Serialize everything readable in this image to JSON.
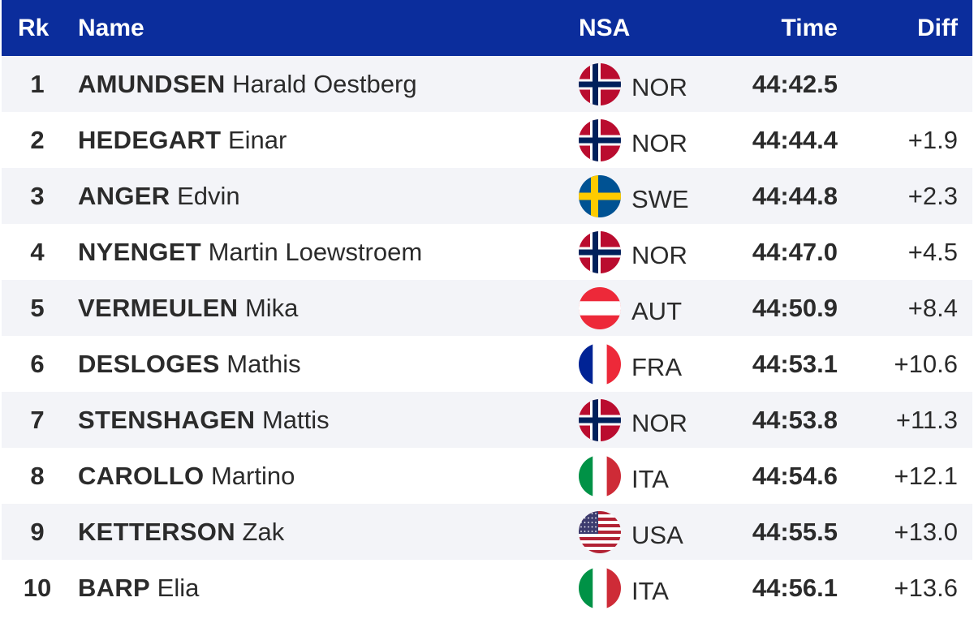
{
  "header": {
    "rk": "Rk",
    "name": "Name",
    "nsa": "NSA",
    "time": "Time",
    "diff": "Diff"
  },
  "colors": {
    "header_bg": "#0b2d9c",
    "row_alt": "#f3f4f8",
    "text": "#2b2b2b"
  },
  "rows": [
    {
      "rank": "1",
      "last": "AMUNDSEN",
      "first": "Harald Oestberg",
      "nsa": "NOR",
      "flag": "norway-flag-icon",
      "time": "44:42.5",
      "diff": ""
    },
    {
      "rank": "2",
      "last": "HEDEGART",
      "first": "Einar",
      "nsa": "NOR",
      "flag": "norway-flag-icon",
      "time": "44:44.4",
      "diff": "+1.9"
    },
    {
      "rank": "3",
      "last": "ANGER",
      "first": "Edvin",
      "nsa": "SWE",
      "flag": "sweden-flag-icon",
      "time": "44:44.8",
      "diff": "+2.3"
    },
    {
      "rank": "4",
      "last": "NYENGET",
      "first": "Martin Loewstroem",
      "nsa": "NOR",
      "flag": "norway-flag-icon",
      "time": "44:47.0",
      "diff": "+4.5"
    },
    {
      "rank": "5",
      "last": "VERMEULEN",
      "first": "Mika",
      "nsa": "AUT",
      "flag": "austria-flag-icon",
      "time": "44:50.9",
      "diff": "+8.4"
    },
    {
      "rank": "6",
      "last": "DESLOGES",
      "first": "Mathis",
      "nsa": "FRA",
      "flag": "france-flag-icon",
      "time": "44:53.1",
      "diff": "+10.6"
    },
    {
      "rank": "7",
      "last": "STENSHAGEN",
      "first": "Mattis",
      "nsa": "NOR",
      "flag": "norway-flag-icon",
      "time": "44:53.8",
      "diff": "+11.3"
    },
    {
      "rank": "8",
      "last": "CAROLLO",
      "first": "Martino",
      "nsa": "ITA",
      "flag": "italy-flag-icon",
      "time": "44:54.6",
      "diff": "+12.1"
    },
    {
      "rank": "9",
      "last": "KETTERSON",
      "first": "Zak",
      "nsa": "USA",
      "flag": "usa-flag-icon",
      "time": "44:55.5",
      "diff": "+13.0"
    },
    {
      "rank": "10",
      "last": "BARP",
      "first": "Elia",
      "nsa": "ITA",
      "flag": "italy-flag-icon",
      "time": "44:56.1",
      "diff": "+13.6"
    }
  ]
}
